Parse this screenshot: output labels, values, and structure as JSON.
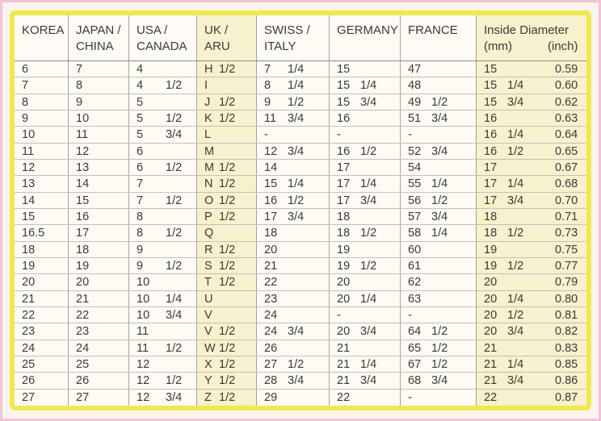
{
  "chart_data": {
    "type": "table",
    "column_ids": [
      "korea",
      "japan-china",
      "usa-canada",
      "uk-aru",
      "swiss-italy",
      "germany",
      "france",
      "inside-diameter-mm",
      "inside-diameter-inch"
    ],
    "columns": [
      {
        "label": "KOREA",
        "lines": [
          "KOREA"
        ]
      },
      {
        "label": "JAPAN / CHINA",
        "lines": [
          "JAPAN /",
          "CHINA"
        ]
      },
      {
        "label": "USA / CANADA",
        "lines": [
          "USA /",
          "CANADA"
        ]
      },
      {
        "label": "UK / ARU",
        "lines": [
          "UK /",
          "ARU"
        ]
      },
      {
        "label": "SWISS / ITALY",
        "lines": [
          "SWISS /",
          "ITALY"
        ]
      },
      {
        "label": "GERMANY",
        "lines": [
          "GERMANY"
        ]
      },
      {
        "label": "FRANCE",
        "lines": [
          "FRANCE"
        ]
      },
      {
        "label": "Inside Diameter (mm)",
        "lines": [
          "(mm)"
        ]
      },
      {
        "label": "Inside Diameter (inch)",
        "lines": [
          "(inch)"
        ]
      }
    ],
    "group_header": {
      "title": "Inside Diameter",
      "sub_mm": "(mm)",
      "sub_inch": "(inch)"
    },
    "highlight_cols": [
      3,
      7,
      8
    ],
    "rows": [
      [
        "6",
        "7",
        "4",
        "H 1/2",
        "7 1/4",
        "15",
        "47",
        "15",
        "0.59"
      ],
      [
        "7",
        "8",
        "4 1/2",
        "I",
        "8 1/4",
        "15 1/4",
        "48",
        "15 1/4",
        "0.60"
      ],
      [
        "8",
        "9",
        "5",
        "J 1/2",
        "9 1/2",
        "15 3/4",
        "49 1/2",
        "15 3/4",
        "0.62"
      ],
      [
        "9",
        "10",
        "5 1/2",
        "K 1/2",
        "11 3/4",
        "16",
        "51 3/4",
        "16",
        "0.63"
      ],
      [
        "10",
        "11",
        "5 3/4",
        "L",
        "-",
        "-",
        "-",
        "16 1/4",
        "0.64"
      ],
      [
        "11",
        "12",
        "6",
        "M",
        "12 3/4",
        "16 1/2",
        "52 3/4",
        "16 1/2",
        "0.65"
      ],
      [
        "12",
        "13",
        "6 1/2",
        "M 1/2",
        "14",
        "17",
        "54",
        "17",
        "0.67"
      ],
      [
        "13",
        "14",
        "7",
        "N 1/2",
        "15 1/4",
        "17 1/4",
        "55 1/4",
        "17 1/4",
        "0.68"
      ],
      [
        "14",
        "15",
        "7 1/2",
        "O 1/2",
        "16 1/2",
        "17 3/4",
        "56 1/2",
        "17 3/4",
        "0.70"
      ],
      [
        "15",
        "16",
        "8",
        "P 1/2",
        "17 3/4",
        "18",
        "57 3/4",
        "18",
        "0.71"
      ],
      [
        "16.5",
        "17",
        "8 1/2",
        "Q",
        "18",
        "18 1/2",
        "58 1/4",
        "18 1/2",
        "0.73"
      ],
      [
        "18",
        "18",
        "9",
        "R 1/2",
        "20",
        "19",
        "60",
        "19",
        "0.75"
      ],
      [
        "19",
        "19",
        "9 1/2",
        "S 1/2",
        "21",
        "19 1/2",
        "61",
        "19 1/2",
        "0.77"
      ],
      [
        "20",
        "20",
        "10",
        "T 1/2",
        "22",
        "20",
        "62",
        "20",
        "0.79"
      ],
      [
        "21",
        "21",
        "10 1/4",
        "U",
        "23",
        "20 1/4",
        "63",
        "20 1/4",
        "0.80"
      ],
      [
        "22",
        "22",
        "10 3/4",
        "V",
        "24",
        "-",
        "-",
        "20 1/2",
        "0.81"
      ],
      [
        "23",
        "23",
        "11",
        "V 1/2",
        "24 3/4",
        "20 3/4",
        "64 1/2",
        "20 3/4",
        "0.82"
      ],
      [
        "24",
        "24",
        "11 1/2",
        "W 1/2",
        "26",
        "21",
        "65 1/2",
        "21",
        "0.83"
      ],
      [
        "25",
        "25",
        "12",
        "X 1/2",
        "27 1/2",
        "21 1/4",
        "67 1/2",
        "21 1/4",
        "0.85"
      ],
      [
        "26",
        "26",
        "12 1/2",
        "Y 1/2",
        "28 3/4",
        "21 3/4",
        "68 3/4",
        "21 3/4",
        "0.86"
      ],
      [
        "27",
        "27",
        "12 3/4",
        "Z 1/2",
        "29",
        "22",
        "-",
        "22",
        "0.87"
      ]
    ]
  },
  "colors": {
    "page_border": "#f3c3d8",
    "page_background": "#faf4ec",
    "table_border": "#f0e850",
    "cell_background": "#fdfbf3",
    "highlight_background": "#f7f1cd",
    "text": "#3c3a35"
  }
}
